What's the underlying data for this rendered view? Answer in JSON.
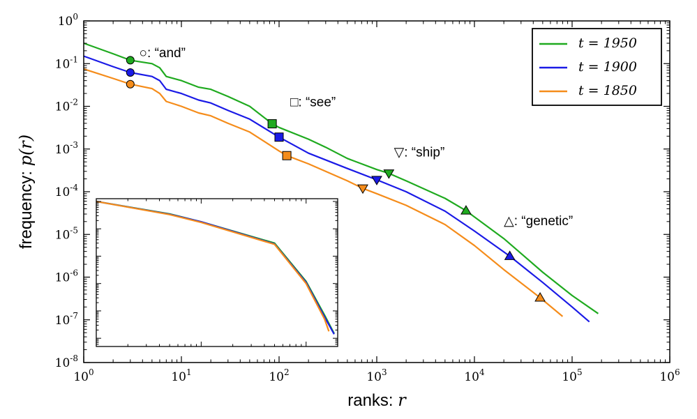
{
  "chart_data": {
    "type": "line",
    "xlabel": "ranks: r",
    "ylabel": "frequency: p(r)",
    "xscale": "log",
    "yscale": "log",
    "xlim": [
      1,
      1000000
    ],
    "ylim": [
      1e-08,
      1
    ],
    "x_tick_labels": [
      "10^0",
      "10^1",
      "10^2",
      "10^3",
      "10^4",
      "10^5",
      "10^6"
    ],
    "y_tick_labels": [
      "10^-8",
      "10^-7",
      "10^-6",
      "10^-5",
      "10^-4",
      "10^-3",
      "10^-2",
      "10^-1",
      "10^0"
    ],
    "legend": {
      "position": "top-right",
      "entries": [
        "t = 1950",
        "t = 1900",
        "t = 1850"
      ]
    },
    "series": [
      {
        "name": "t = 1950",
        "color": "#1faa1f",
        "x": [
          1,
          2,
          3,
          5,
          6,
          7,
          10,
          15,
          20,
          30,
          50,
          85,
          100,
          200,
          300,
          500,
          1000,
          1330,
          2000,
          5000,
          8200,
          20000,
          50000,
          100000,
          185000
        ],
        "y": [
          0.3,
          0.17,
          0.12,
          0.1,
          0.08,
          0.05,
          0.04,
          0.028,
          0.025,
          0.017,
          0.01,
          0.0039,
          0.0032,
          0.0017,
          0.0011,
          0.0006,
          0.00033,
          0.00027,
          0.00018,
          7e-05,
          3.6e-05,
          8e-06,
          1.3e-06,
          3.7e-07,
          1.4e-07
        ]
      },
      {
        "name": "t = 1900",
        "color": "#1a1ae6",
        "x": [
          1,
          2,
          3,
          5,
          6,
          7,
          10,
          15,
          20,
          30,
          50,
          100,
          200,
          500,
          1000,
          2000,
          5000,
          10000,
          23000,
          50000,
          100000,
          150000
        ],
        "y": [
          0.15,
          0.085,
          0.062,
          0.05,
          0.04,
          0.025,
          0.02,
          0.014,
          0.012,
          0.008,
          0.005,
          0.0019,
          0.0008,
          0.00035,
          0.00019,
          0.0001,
          3.5e-05,
          1.2e-05,
          3.1e-06,
          7.5e-07,
          2e-07,
          9e-08
        ]
      },
      {
        "name": "t = 1850",
        "color": "#f58c1a",
        "x": [
          1,
          2,
          3,
          5,
          6,
          7,
          10,
          15,
          20,
          30,
          50,
          100,
          120,
          200,
          500,
          720,
          1000,
          2000,
          5000,
          10000,
          20000,
          47000,
          80000
        ],
        "y": [
          0.075,
          0.045,
          0.033,
          0.026,
          0.02,
          0.013,
          0.01,
          0.007,
          0.006,
          0.004,
          0.0025,
          0.0009,
          0.0007,
          0.00045,
          0.00018,
          0.00012,
          9e-05,
          4.8e-05,
          1.7e-05,
          5.5e-06,
          1.5e-06,
          3.3e-07,
          1.2e-07
        ]
      }
    ],
    "annotations": [
      {
        "label": "○: “and”",
        "x": 3.7,
        "y": 0.17
      },
      {
        "label": "□: “see”",
        "x": 130,
        "y": 0.012
      },
      {
        "label": "▽: “ship”",
        "x": 1500,
        "y": 0.0008
      },
      {
        "label": "△: “genetic”",
        "x": 20000,
        "y": 2e-05
      }
    ],
    "markers": [
      {
        "word": "and",
        "shape": "circle",
        "series": "t = 1950",
        "x": 3,
        "y": 0.12
      },
      {
        "word": "and",
        "shape": "circle",
        "series": "t = 1900",
        "x": 3,
        "y": 0.062
      },
      {
        "word": "and",
        "shape": "circle",
        "series": "t = 1850",
        "x": 3,
        "y": 0.033
      },
      {
        "word": "see",
        "shape": "square",
        "series": "t = 1950",
        "x": 85,
        "y": 0.0039
      },
      {
        "word": "see",
        "shape": "square",
        "series": "t = 1900",
        "x": 100,
        "y": 0.0019
      },
      {
        "word": "see",
        "shape": "square",
        "series": "t = 1850",
        "x": 120,
        "y": 0.0007
      },
      {
        "word": "ship",
        "shape": "triangle-down",
        "series": "t = 1950",
        "x": 1330,
        "y": 0.00027
      },
      {
        "word": "ship",
        "shape": "triangle-down",
        "series": "t = 1900",
        "x": 1000,
        "y": 0.00019
      },
      {
        "word": "ship",
        "shape": "triangle-down",
        "series": "t = 1850",
        "x": 720,
        "y": 0.00012
      },
      {
        "word": "genetic",
        "shape": "triangle-up",
        "series": "t = 1950",
        "x": 8200,
        "y": 3.6e-05
      },
      {
        "word": "genetic",
        "shape": "triangle-up",
        "series": "t = 1900",
        "x": 23000,
        "y": 3.1e-06
      },
      {
        "word": "genetic",
        "shape": "triangle-up",
        "series": "t = 1850",
        "x": 47000,
        "y": 3.3e-07
      }
    ],
    "inset": {
      "type": "line",
      "xscale": "log",
      "yscale": "log",
      "tick_labels_shown": false,
      "series": [
        {
          "name": "t = 1950",
          "color": "#1faa1f",
          "x": [
            1,
            5,
            10,
            50,
            100,
            150,
            185
          ],
          "y": [
            1,
            0.35,
            0.18,
            0.03,
            0.0012,
            7e-05,
            1.5e-05
          ]
        },
        {
          "name": "t = 1900",
          "color": "#1a1ae6",
          "x": [
            1,
            5,
            10,
            50,
            100,
            150,
            185
          ],
          "y": [
            1,
            0.34,
            0.18,
            0.028,
            0.0011,
            6e-05,
            1.4e-05
          ]
        },
        {
          "name": "t = 1850",
          "color": "#f58c1a",
          "x": [
            1,
            5,
            10,
            50,
            100,
            150,
            165
          ],
          "y": [
            1,
            0.33,
            0.17,
            0.027,
            0.001,
            5e-05,
            1.8e-05
          ]
        }
      ]
    }
  }
}
